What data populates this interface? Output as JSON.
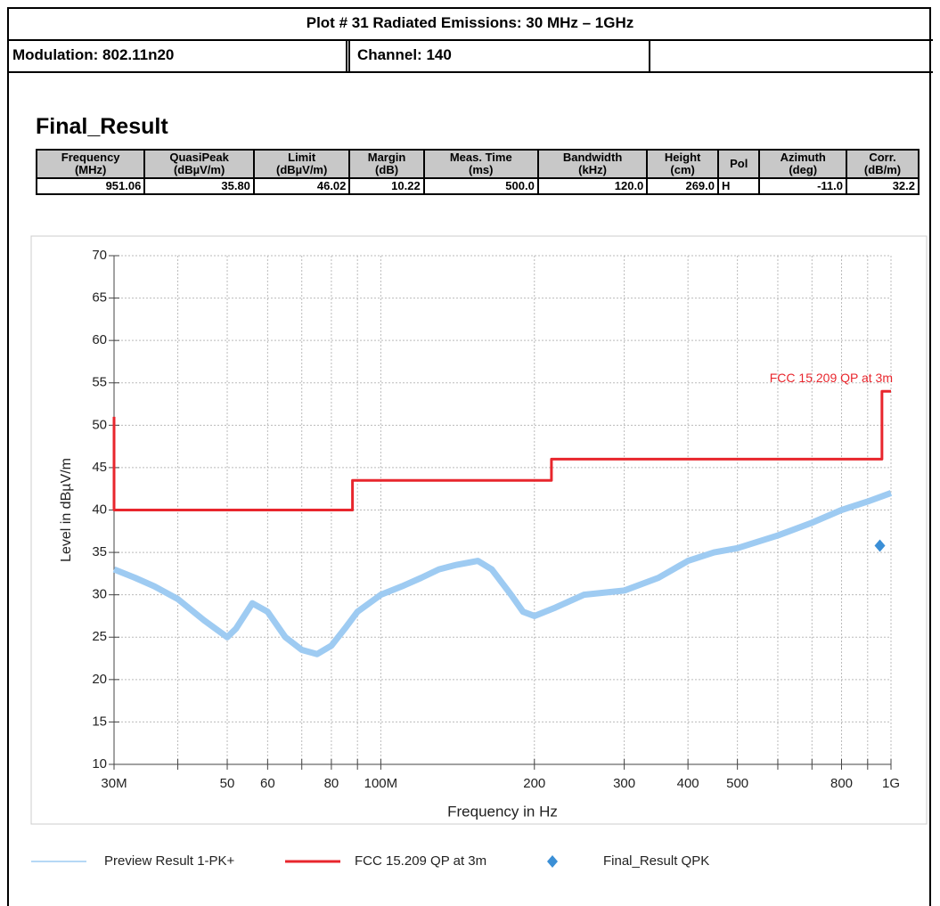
{
  "header": {
    "title": "Plot # 31 Radiated Emissions: 30 MHz – 1GHz",
    "modulation": "Modulation: 802.11n20",
    "channel": "Channel: 140"
  },
  "result_title": "Final_Result",
  "table": {
    "columns": [
      [
        "Frequency",
        "(MHz)"
      ],
      [
        "QuasiPeak",
        "(dBµV/m)"
      ],
      [
        "Limit",
        "(dBµV/m)"
      ],
      [
        "Margin",
        "(dB)"
      ],
      [
        "Meas. Time",
        "(ms)"
      ],
      [
        "Bandwidth",
        "(kHz)"
      ],
      [
        "Height",
        "(cm)"
      ],
      [
        "Pol"
      ],
      [
        "Azimuth",
        "(deg)"
      ],
      [
        "Corr.",
        "(dB/m)"
      ]
    ],
    "rows": [
      [
        "951.06",
        "35.80",
        "46.02",
        "10.22",
        "500.0",
        "120.0",
        "269.0",
        "H",
        "-11.0",
        "32.2"
      ]
    ]
  },
  "chart_data": {
    "type": "line",
    "xscale": "log",
    "xlabel": "Frequency in Hz",
    "ylabel": "Level in dBµV/m",
    "xlim": [
      30000000,
      1000000000
    ],
    "ylim": [
      10,
      70
    ],
    "xticks": [
      {
        "value": 30000000,
        "label": "30M"
      },
      {
        "value": 50000000,
        "label": "50"
      },
      {
        "value": 60000000,
        "label": "60"
      },
      {
        "value": 80000000,
        "label": "80"
      },
      {
        "value": 100000000,
        "label": "100M"
      },
      {
        "value": 200000000,
        "label": "200"
      },
      {
        "value": 300000000,
        "label": "300"
      },
      {
        "value": 400000000,
        "label": "400"
      },
      {
        "value": 500000000,
        "label": "500"
      },
      {
        "value": 800000000,
        "label": "800"
      },
      {
        "value": 1000000000,
        "label": "1G"
      }
    ],
    "xminorticks": [
      40000000,
      70000000,
      90000000,
      600000000,
      700000000,
      900000000
    ],
    "yticks": [
      10,
      15,
      20,
      25,
      30,
      35,
      40,
      45,
      50,
      55,
      60,
      65,
      70
    ],
    "grid": true,
    "annotation": "FCC 15.209 QP at 3m",
    "series": [
      {
        "name": "Preview Result 1-PK+",
        "color": "#9ecbf2",
        "mode": "lines",
        "x": [
          30000000,
          33000000,
          36000000,
          40000000,
          45000000,
          50000000,
          52000000,
          56000000,
          60000000,
          65000000,
          70000000,
          75000000,
          80000000,
          85000000,
          90000000,
          100000000,
          110000000,
          120000000,
          130000000,
          140000000,
          155000000,
          165000000,
          180000000,
          190000000,
          200000000,
          220000000,
          250000000,
          300000000,
          350000000,
          400000000,
          450000000,
          500000000,
          600000000,
          700000000,
          800000000,
          900000000,
          1000000000
        ],
        "values": [
          33,
          32,
          31,
          29.5,
          27,
          25,
          26,
          29,
          28,
          25,
          23.5,
          23,
          24,
          26,
          28,
          30,
          31,
          32,
          33,
          33.5,
          34,
          33,
          30,
          28,
          27.5,
          28.5,
          30,
          30.5,
          32,
          34,
          35,
          35.5,
          37,
          38.5,
          40,
          41,
          42
        ]
      },
      {
        "name": "FCC 15.209 QP at 3m",
        "color": "#e8262d",
        "mode": "lines",
        "x": [
          30000000,
          30000000,
          88000000,
          88000000,
          216000000,
          216000000,
          960000000,
          960000000,
          1000000000
        ],
        "values": [
          51,
          40,
          40,
          43.5,
          43.5,
          46,
          46,
          54,
          54
        ]
      },
      {
        "name": "Final_Result QPK",
        "color": "#3b8fd6",
        "mode": "markers",
        "marker": "diamond",
        "x": [
          951060000
        ],
        "values": [
          35.8
        ]
      }
    ]
  }
}
